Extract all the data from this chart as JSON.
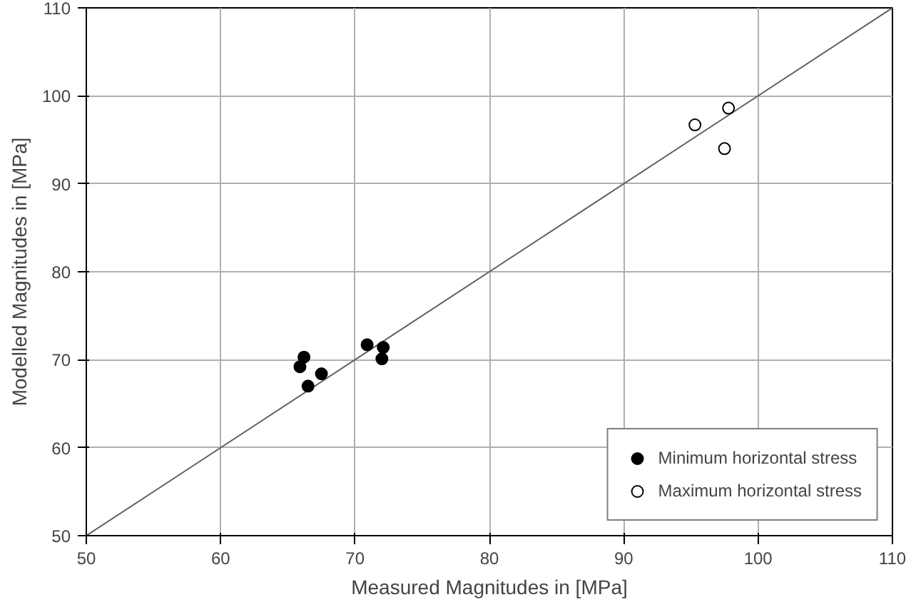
{
  "chart_data": {
    "type": "scatter",
    "xlabel": "Measured Magnitudes in [MPa]",
    "ylabel": "Modelled Magnitudes in [MPa]",
    "xlim": [
      50,
      110
    ],
    "ylim": [
      50,
      110
    ],
    "xticks": [
      50,
      60,
      70,
      80,
      90,
      100,
      110
    ],
    "yticks": [
      50,
      60,
      70,
      80,
      90,
      100,
      110
    ],
    "grid": true,
    "legend": "bottom right",
    "marker": "circle",
    "series": [
      {
        "type": "line",
        "marker": "none",
        "color": "#606060",
        "x": [
          50,
          110
        ],
        "values": [
          50,
          110
        ]
      },
      {
        "name": "Minimum horizontal stress",
        "color": "#000000",
        "x": [
          66.2,
          65.9,
          67.5,
          66.5,
          70.9,
          72.1,
          72.0
        ],
        "values": [
          70.3,
          69.2,
          68.4,
          67.0,
          71.7,
          71.4,
          70.1
        ]
      },
      {
        "name": "Maximum horizontal stress",
        "color": "#ffffff",
        "x": [
          95.3,
          97.8,
          97.5
        ],
        "values": [
          96.7,
          98.6,
          94.0
        ]
      }
    ]
  }
}
